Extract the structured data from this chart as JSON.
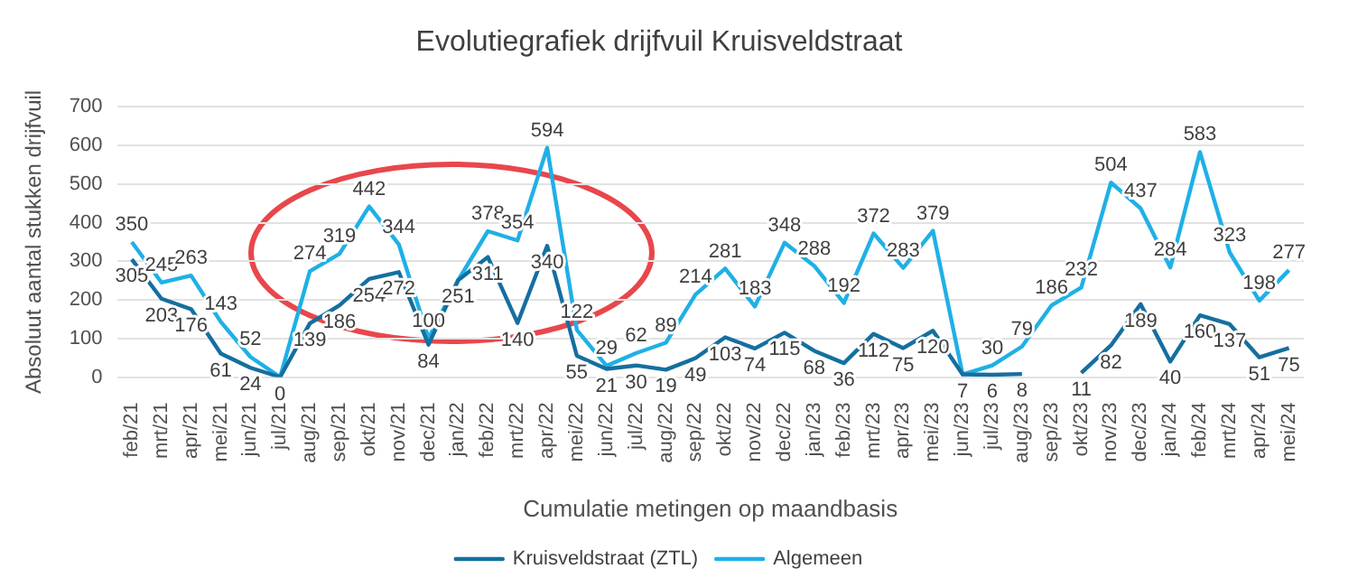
{
  "chart_data": {
    "type": "line",
    "title": "Evolutiegrafiek drijfvuil Kruisveldstraat",
    "xlabel": "Cumulatie metingen op maandbasis",
    "ylabel": "Absoluut aantal stukken drijfvuil",
    "categories": [
      "feb/21",
      "mrt/21",
      "apr/21",
      "mei/21",
      "jun/21",
      "jul/21",
      "aug/21",
      "sep/21",
      "okt/21",
      "nov/21",
      "dec/21",
      "jan/22",
      "feb/22",
      "mrt/22",
      "apr/22",
      "mei/22",
      "jun/22",
      "jul/22",
      "aug/22",
      "sep/22",
      "okt/22",
      "nov/22",
      "dec/22",
      "jan/23",
      "feb/23",
      "mrt/23",
      "apr/23",
      "mei/23",
      "jun/23",
      "jul/23",
      "aug/23",
      "sep/23",
      "okt/23",
      "nov/23",
      "dec/23",
      "jan/24",
      "feb/24",
      "mrt/24",
      "apr/24",
      "mei/24"
    ],
    "series": [
      {
        "name": "Kruisveldstraat (ZTL)",
        "color": "#156f9f",
        "values": [
          305,
          203,
          176,
          61,
          24,
          0,
          139,
          186,
          254,
          272,
          84,
          251,
          311,
          140,
          340,
          55,
          21,
          30,
          19,
          49,
          103,
          74,
          115,
          68,
          36,
          112,
          75,
          120,
          7,
          6,
          8,
          null,
          11,
          82,
          189,
          40,
          160,
          137,
          51,
          75
        ],
        "value_labels": [
          "305",
          "203",
          "176",
          "61",
          "24",
          "0",
          "139",
          "186",
          "254",
          "272",
          "84",
          "251",
          "311",
          "140",
          "340",
          "55",
          "21",
          "30",
          "19",
          "49",
          "103",
          "74",
          "115",
          "68",
          "36",
          "112",
          "75",
          "120",
          "7",
          "6",
          "8",
          null,
          "11",
          "82",
          "189",
          "40",
          "160",
          "137",
          "51",
          "75"
        ]
      },
      {
        "name": "Algemeen",
        "color": "#1fb0e6",
        "values": [
          350,
          245,
          263,
          143,
          52,
          0,
          274,
          319,
          442,
          344,
          100,
          251,
          378,
          354,
          594,
          122,
          29,
          62,
          89,
          214,
          281,
          183,
          348,
          288,
          192,
          372,
          283,
          379,
          7,
          30,
          79,
          186,
          232,
          504,
          437,
          284,
          583,
          323,
          198,
          277
        ],
        "value_labels": [
          "350",
          "245",
          "263",
          "143",
          "52",
          null,
          "274",
          "319",
          "442",
          "344",
          "100",
          null,
          "378",
          "354",
          "594",
          "122",
          "29",
          "62",
          "89",
          "214",
          "281",
          "183",
          "348",
          "288",
          "192",
          "372",
          "283",
          "379",
          null,
          "30",
          "79",
          "186",
          "232",
          "504",
          "437",
          "284",
          "583",
          "323",
          "198",
          "277"
        ]
      }
    ],
    "ylim": [
      0,
      700
    ],
    "yticks": [
      0,
      100,
      200,
      300,
      400,
      500,
      600,
      700
    ],
    "grid": "y",
    "legend": "bottom",
    "data_labels": false,
    "marker": "none",
    "line_style": "solid"
  }
}
